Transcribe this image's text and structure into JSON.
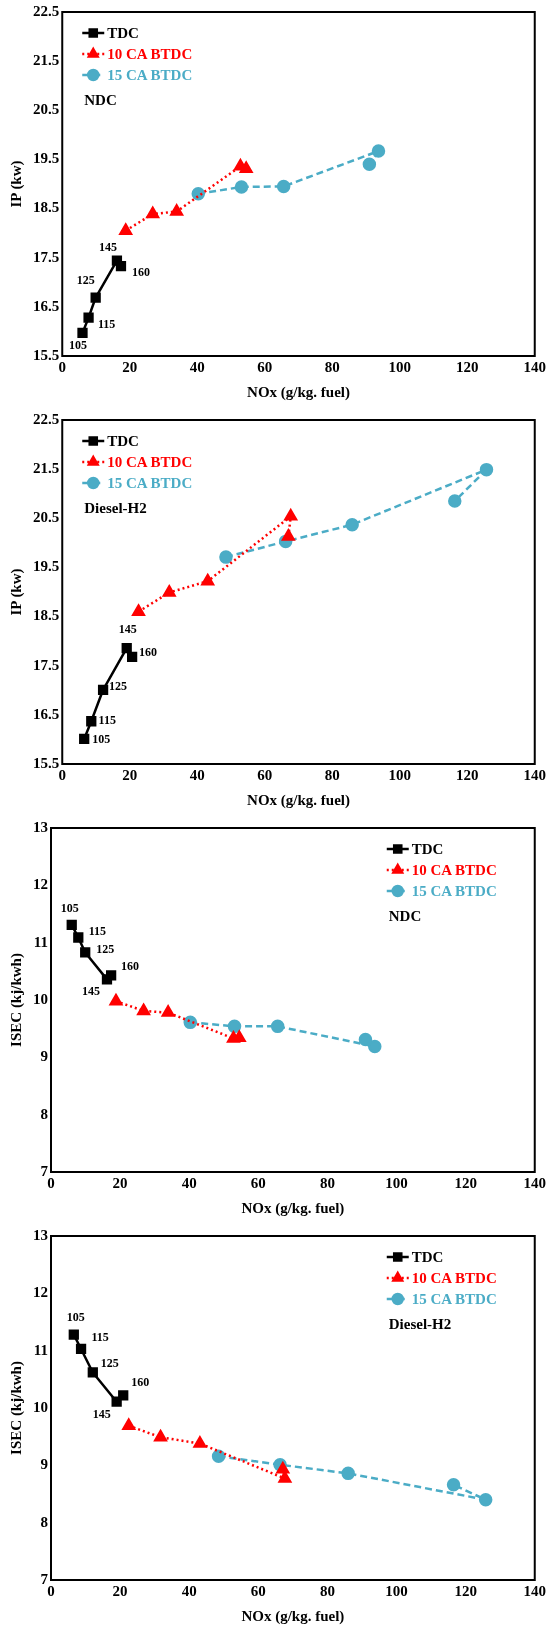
{
  "chart_data": [
    {
      "type": "line",
      "xlabel": "NOx (g/kg. fuel)",
      "ylabel": "IP (kw)",
      "xlim": [
        0,
        140
      ],
      "xticks": [
        0,
        20,
        40,
        60,
        80,
        100,
        120,
        140
      ],
      "ylim": [
        15.5,
        22.5
      ],
      "yticks": [
        15.5,
        16.5,
        17.5,
        18.5,
        19.5,
        20.5,
        21.5,
        22.5
      ],
      "grid": false,
      "legend": "top left",
      "series": [
        {
          "name": "TDC",
          "color": "#000000",
          "marker": "square",
          "line_style": "solid",
          "x": [
            6.0,
            7.8,
            9.9,
            16.2,
            17.4
          ],
          "values": [
            15.97,
            16.28,
            16.69,
            17.44,
            17.33
          ]
        },
        {
          "name": "10 CA BTDC",
          "color": "#ff0000",
          "marker": "triangle",
          "line_style": "dotted",
          "x": [
            18.8,
            26.8,
            33.9,
            52.8,
            54.5
          ],
          "values": [
            18.05,
            18.39,
            18.44,
            19.36,
            19.31
          ]
        },
        {
          "name": "15 CA BTDC",
          "color": "#4bacc6",
          "marker": "circle",
          "line_style": "dashed",
          "x": [
            40.3,
            53.1,
            65.6,
            93.7,
            91.0
          ],
          "values": [
            18.8,
            18.94,
            18.95,
            19.67,
            19.4
          ]
        }
      ],
      "annotations": [
        "NDC",
        {
          "text": "105",
          "x": 6.0,
          "y": 15.97
        },
        {
          "text": "115",
          "x": 7.8,
          "y": 16.28
        },
        {
          "text": "125",
          "x": 9.9,
          "y": 16.69
        },
        {
          "text": "145",
          "x": 16.2,
          "y": 17.44
        },
        {
          "text": "160",
          "x": 17.4,
          "y": 17.33
        }
      ]
    },
    {
      "type": "line",
      "xlabel": "NOx (g/kg. fuel)",
      "ylabel": "IP (kw)",
      "xlim": [
        0,
        140
      ],
      "xticks": [
        0,
        20,
        40,
        60,
        80,
        100,
        120,
        140
      ],
      "ylim": [
        15.5,
        22.5
      ],
      "yticks": [
        15.5,
        16.5,
        17.5,
        18.5,
        19.5,
        20.5,
        21.5,
        22.5
      ],
      "grid": false,
      "legend": "top left",
      "series": [
        {
          "name": "TDC",
          "color": "#000000",
          "marker": "square",
          "line_style": "solid",
          "x": [
            6.5,
            8.6,
            12.1,
            19.1,
            20.7
          ],
          "values": [
            16.01,
            16.37,
            17.01,
            17.86,
            17.68
          ]
        },
        {
          "name": "10 CA BTDC",
          "color": "#ff0000",
          "marker": "triangle",
          "line_style": "dotted",
          "x": [
            22.6,
            31.7,
            43.1,
            67.7,
            67.0
          ],
          "values": [
            18.6,
            18.99,
            19.22,
            20.54,
            20.13
          ]
        },
        {
          "name": "15 CA BTDC",
          "color": "#4bacc6",
          "marker": "circle",
          "line_style": "dashed",
          "x": [
            48.5,
            66.2,
            85.9,
            125.7,
            116.3
          ],
          "values": [
            19.71,
            20.03,
            20.37,
            21.49,
            20.85
          ]
        }
      ],
      "annotations": [
        "Diesel-H2",
        {
          "text": "105",
          "x": 6.5,
          "y": 16.01
        },
        {
          "text": "115",
          "x": 8.6,
          "y": 16.37
        },
        {
          "text": "125",
          "x": 12.1,
          "y": 17.01
        },
        {
          "text": "145",
          "x": 19.1,
          "y": 17.86
        },
        {
          "text": "160",
          "x": 20.7,
          "y": 17.68
        }
      ]
    },
    {
      "type": "line",
      "xlabel": "NOx (g/kg. fuel)",
      "ylabel": "ISEC (kj/kwh)",
      "xlim": [
        0,
        140
      ],
      "xticks": [
        0,
        20,
        40,
        60,
        80,
        100,
        120,
        140
      ],
      "ylim": [
        7,
        13
      ],
      "yticks": [
        7,
        8,
        9,
        10,
        11,
        12,
        13
      ],
      "grid": false,
      "legend": "top right",
      "series": [
        {
          "name": "TDC",
          "color": "#000000",
          "marker": "square",
          "line_style": "solid",
          "x": [
            6.0,
            7.9,
            9.9,
            16.2,
            17.4
          ],
          "values": [
            11.31,
            11.09,
            10.83,
            10.36,
            10.43
          ]
        },
        {
          "name": "10 CA BTDC",
          "color": "#ff0000",
          "marker": "triangle",
          "line_style": "dotted",
          "x": [
            18.8,
            26.8,
            33.9,
            52.8,
            54.5
          ],
          "values": [
            9.98,
            9.81,
            9.78,
            9.33,
            9.34
          ]
        },
        {
          "name": "15 CA BTDC",
          "color": "#4bacc6",
          "marker": "circle",
          "line_style": "dashed",
          "x": [
            40.3,
            53.1,
            65.6,
            93.7,
            91.0
          ],
          "values": [
            9.61,
            9.54,
            9.54,
            9.19,
            9.31
          ]
        }
      ],
      "annotations": [
        "NDC",
        {
          "text": "105",
          "x": 6.0,
          "y": 11.31
        },
        {
          "text": "115",
          "x": 7.9,
          "y": 11.09
        },
        {
          "text": "125",
          "x": 9.9,
          "y": 10.83
        },
        {
          "text": "145",
          "x": 16.2,
          "y": 10.36
        },
        {
          "text": "160",
          "x": 17.4,
          "y": 10.43
        }
      ]
    },
    {
      "type": "line",
      "xlabel": "NOx (g/kg. fuel)",
      "ylabel": "ISEC (kj/kwh)",
      "xlim": [
        0,
        140
      ],
      "xticks": [
        0,
        20,
        40,
        60,
        80,
        100,
        120,
        140
      ],
      "ylim": [
        7,
        13
      ],
      "yticks": [
        7,
        8,
        9,
        10,
        11,
        12,
        13
      ],
      "grid": false,
      "legend": "top right",
      "series": [
        {
          "name": "TDC",
          "color": "#000000",
          "marker": "square",
          "line_style": "solid",
          "x": [
            6.6,
            8.7,
            12.1,
            19.0,
            20.9
          ],
          "values": [
            11.28,
            11.03,
            10.62,
            10.11,
            10.22
          ]
        },
        {
          "name": "10 CA BTDC",
          "color": "#ff0000",
          "marker": "triangle",
          "line_style": "dotted",
          "x": [
            22.5,
            31.7,
            43.1,
            67.7,
            67.1
          ],
          "values": [
            9.69,
            9.49,
            9.38,
            8.77,
            8.93
          ]
        },
        {
          "name": "15 CA BTDC",
          "color": "#4bacc6",
          "marker": "circle",
          "line_style": "dashed",
          "x": [
            48.5,
            66.3,
            86.0,
            125.8,
            116.5
          ],
          "values": [
            9.16,
            9.01,
            8.86,
            8.4,
            8.66
          ]
        }
      ],
      "annotations": [
        "Diesel-H2",
        {
          "text": "105",
          "x": 6.6,
          "y": 11.28
        },
        {
          "text": "115",
          "x": 8.7,
          "y": 11.03
        },
        {
          "text": "125",
          "x": 12.1,
          "y": 10.62
        },
        {
          "text": "145",
          "x": 19.0,
          "y": 10.11
        },
        {
          "text": "160",
          "x": 20.9,
          "y": 10.22
        }
      ]
    }
  ]
}
